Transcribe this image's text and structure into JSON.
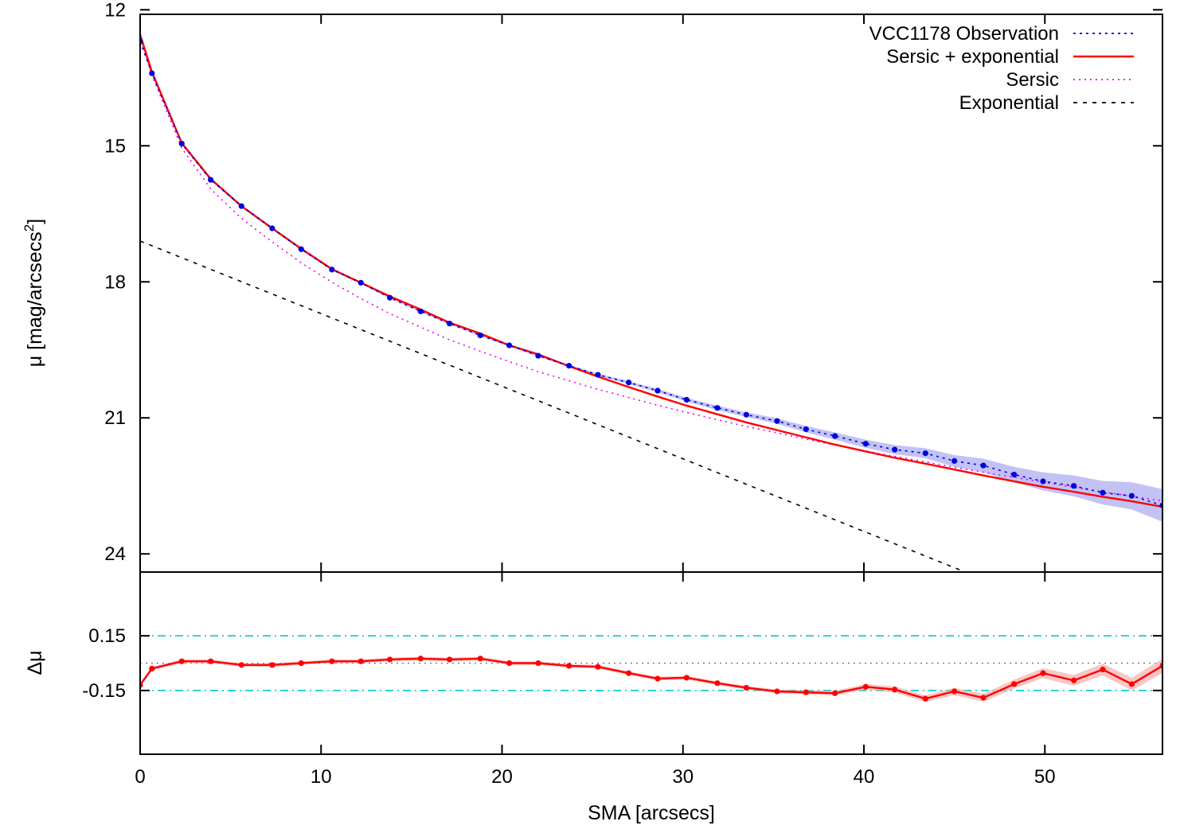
{
  "chart_data": [
    {
      "type": "line",
      "panel": "main",
      "xlabel": "",
      "ylabel": "μ [mag/arcsecs²]",
      "ylabel_parts": {
        "base": "μ [mag/arcsecs",
        "sup": "2",
        "close": "]"
      },
      "xlim": [
        0,
        56.5
      ],
      "ylim": [
        24.4,
        12.1
      ],
      "y_inverted": true,
      "yticks": [
        12,
        15,
        18,
        21,
        24
      ],
      "ytick_labels": [
        "12",
        "15",
        "18",
        "21",
        "24"
      ],
      "xticks": [
        0,
        10,
        20,
        30,
        40,
        50
      ],
      "legend_position": "top-right",
      "series": [
        {
          "name": "VCC1178 Observation",
          "color": "#0000dd",
          "style": "dotted-with-points",
          "band_color": "#9a9aee",
          "x": [
            0.0,
            0.65,
            2.3,
            3.9,
            5.6,
            7.3,
            8.9,
            10.6,
            12.2,
            13.8,
            15.5,
            17.1,
            18.8,
            20.4,
            22.0,
            23.7,
            25.3,
            27.0,
            28.6,
            30.2,
            31.9,
            33.5,
            35.2,
            36.8,
            38.4,
            40.1,
            41.7,
            43.4,
            45.0,
            46.6,
            48.3,
            49.9,
            51.6,
            53.2,
            54.8,
            56.5
          ],
          "y": [
            12.7,
            13.4,
            14.95,
            15.75,
            16.33,
            16.82,
            17.28,
            17.73,
            18.02,
            18.35,
            18.65,
            18.92,
            19.18,
            19.4,
            19.63,
            19.85,
            20.05,
            20.22,
            20.4,
            20.6,
            20.78,
            20.93,
            21.07,
            21.25,
            21.4,
            21.57,
            21.7,
            21.78,
            21.95,
            22.05,
            22.25,
            22.4,
            22.5,
            22.65,
            22.72,
            22.93
          ],
          "err": [
            0.02,
            0.02,
            0.02,
            0.02,
            0.02,
            0.02,
            0.02,
            0.02,
            0.02,
            0.02,
            0.02,
            0.02,
            0.02,
            0.02,
            0.02,
            0.02,
            0.03,
            0.03,
            0.04,
            0.04,
            0.05,
            0.05,
            0.06,
            0.07,
            0.08,
            0.09,
            0.1,
            0.11,
            0.13,
            0.15,
            0.17,
            0.2,
            0.23,
            0.26,
            0.3,
            0.36
          ]
        },
        {
          "name": "Sersic + exponential",
          "color": "#ff0000",
          "style": "solid",
          "x": [
            0.0,
            0.65,
            2.3,
            3.9,
            5.6,
            7.3,
            8.9,
            10.6,
            12.2,
            13.8,
            15.5,
            17.1,
            18.8,
            20.4,
            22.0,
            23.7,
            25.3,
            27.0,
            28.6,
            30.2,
            31.9,
            33.5,
            35.2,
            36.8,
            38.4,
            40.1,
            41.7,
            43.4,
            45.0,
            46.6,
            48.3,
            49.9,
            51.6,
            53.2,
            54.8,
            56.5
          ],
          "y": [
            12.55,
            13.37,
            14.94,
            15.73,
            16.33,
            16.82,
            17.27,
            17.72,
            18.02,
            18.32,
            18.61,
            18.9,
            19.14,
            19.4,
            19.6,
            19.86,
            20.09,
            20.32,
            20.53,
            20.73,
            20.92,
            21.1,
            21.27,
            21.43,
            21.59,
            21.74,
            21.88,
            22.01,
            22.14,
            22.27,
            22.4,
            22.52,
            22.63,
            22.74,
            22.84,
            22.96
          ]
        },
        {
          "name": "Sersic",
          "color": "#ee00ee",
          "style": "dotted",
          "x": [
            0.0,
            0.65,
            2.3,
            3.9,
            5.6,
            7.3,
            8.9,
            10.6,
            12.2,
            13.8,
            15.5,
            17.1,
            18.8,
            20.4,
            22.0,
            23.7,
            25.3,
            27.0,
            28.6,
            30.2,
            31.9,
            33.5,
            35.2,
            36.8,
            38.4,
            40.1,
            41.7,
            43.4,
            45.0,
            46.6,
            48.3,
            49.9,
            51.6,
            53.2,
            54.8,
            56.5
          ],
          "y": [
            12.6,
            13.45,
            15.05,
            15.95,
            16.6,
            17.12,
            17.58,
            18.01,
            18.37,
            18.7,
            19.0,
            19.28,
            19.53,
            19.76,
            19.98,
            20.18,
            20.37,
            20.55,
            20.72,
            20.88,
            21.04,
            21.19,
            21.33,
            21.47,
            21.6,
            21.73,
            21.85,
            21.97,
            22.09,
            22.2,
            22.31,
            22.42,
            22.53,
            22.63,
            22.73,
            22.83
          ]
        },
        {
          "name": "Exponential",
          "color": "#000000",
          "style": "dashed",
          "x": [
            0.0,
            45.6
          ],
          "y": [
            17.1,
            24.4
          ]
        }
      ]
    },
    {
      "type": "line",
      "panel": "residual",
      "xlabel": "SMA [arcsecs]",
      "ylabel": "Δμ",
      "xlim": [
        0,
        56.5
      ],
      "ylim": [
        -0.5,
        0.5
      ],
      "yticks": [
        0.15,
        -0.15
      ],
      "ytick_labels": [
        "0.15",
        "-0.15"
      ],
      "xticks": [
        0,
        10,
        20,
        30,
        40,
        50
      ],
      "xtick_labels": [
        "0",
        "10",
        "20",
        "30",
        "40",
        "50"
      ],
      "reference_lines": [
        {
          "y": 0.15,
          "color": "#00cccc",
          "style": "dash-dot"
        },
        {
          "y": -0.15,
          "color": "#00cccc",
          "style": "dash-dot"
        },
        {
          "y": 0.0,
          "color": "#555555",
          "style": "dotted"
        }
      ],
      "series": [
        {
          "color": "#ff0000",
          "band_color": "#f5a0a0",
          "x": [
            0.0,
            0.65,
            2.3,
            3.9,
            5.6,
            7.3,
            8.9,
            10.6,
            12.2,
            13.8,
            15.5,
            17.1,
            18.8,
            20.4,
            22.0,
            23.7,
            25.3,
            27.0,
            28.6,
            30.2,
            31.9,
            33.5,
            35.2,
            36.8,
            38.4,
            40.1,
            41.7,
            43.4,
            45.0,
            46.6,
            48.3,
            49.9,
            51.6,
            53.2,
            54.8,
            56.5
          ],
          "y": [
            -0.12,
            -0.03,
            0.01,
            0.01,
            -0.01,
            -0.01,
            0.0,
            0.01,
            0.01,
            0.02,
            0.025,
            0.02,
            0.025,
            0.0,
            0.0,
            -0.015,
            -0.02,
            -0.055,
            -0.085,
            -0.08,
            -0.11,
            -0.135,
            -0.155,
            -0.16,
            -0.165,
            -0.13,
            -0.145,
            -0.195,
            -0.155,
            -0.19,
            -0.115,
            -0.055,
            -0.095,
            -0.035,
            -0.115,
            -0.015
          ],
          "err": [
            0.01,
            0.01,
            0.01,
            0.01,
            0.01,
            0.01,
            0.01,
            0.01,
            0.01,
            0.01,
            0.01,
            0.01,
            0.01,
            0.01,
            0.01,
            0.01,
            0.01,
            0.01,
            0.01,
            0.01,
            0.01,
            0.01,
            0.01,
            0.012,
            0.014,
            0.015,
            0.017,
            0.018,
            0.02,
            0.022,
            0.025,
            0.027,
            0.03,
            0.032,
            0.035,
            0.04
          ]
        }
      ]
    }
  ]
}
